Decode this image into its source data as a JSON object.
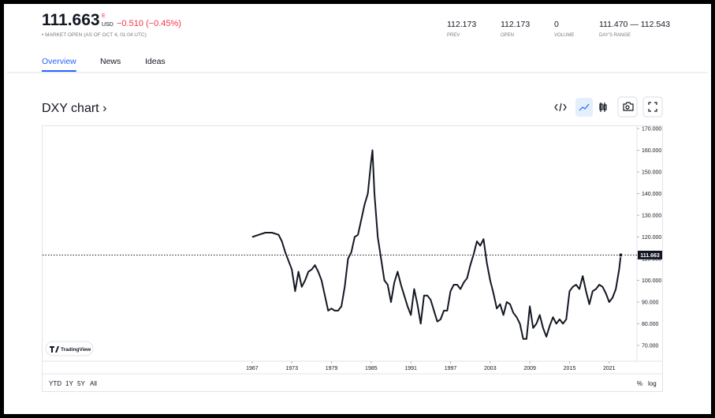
{
  "header": {
    "price": "111.663",
    "exchange_flag": "E",
    "currency": "USD",
    "change": "−0.510 (−0.45%)",
    "market_status": "• MARKET OPEN (AS OF OCT 4, 01:04 UTC)",
    "stats": [
      {
        "value": "112.173",
        "label": "PREV"
      },
      {
        "value": "112.173",
        "label": "OPEN"
      },
      {
        "value": "0",
        "label": "VOLUME"
      },
      {
        "value": "111.470 — 112.543",
        "label": "DAY'S RANGE"
      }
    ]
  },
  "tabs": [
    "Overview",
    "News",
    "Ideas"
  ],
  "active_tab": 0,
  "section_title": "DXY chart ›",
  "chart_data": {
    "type": "line",
    "color": "#131722",
    "x": [
      1967,
      1968,
      1969,
      1970,
      1971,
      1971.5,
      1972,
      1973,
      1973.5,
      1974,
      1974.5,
      1975,
      1975.5,
      1976,
      1976.5,
      1977,
      1977.5,
      1978,
      1978.5,
      1979,
      1979.5,
      1980,
      1980.5,
      1981,
      1981.5,
      1982,
      1982.5,
      1983,
      1983.5,
      1984,
      1984.5,
      1985,
      1985.2,
      1985.5,
      1986,
      1986.5,
      1987,
      1987.5,
      1988,
      1988.5,
      1989,
      1989.5,
      1990,
      1990.5,
      1991,
      1991.5,
      1992,
      1992.5,
      1993,
      1993.5,
      1994,
      1994.5,
      1995,
      1995.5,
      1996,
      1996.5,
      1997,
      1997.5,
      1998,
      1998.5,
      1999,
      1999.5,
      2000,
      2000.5,
      2001,
      2001.5,
      2002,
      2002.5,
      2003,
      2003.5,
      2004,
      2004.5,
      2005,
      2005.5,
      2006,
      2006.5,
      2007,
      2007.5,
      2008,
      2008.5,
      2009,
      2009.5,
      2010,
      2010.5,
      2011,
      2011.5,
      2012,
      2012.5,
      2013,
      2013.5,
      2014,
      2014.5,
      2015,
      2015.5,
      2016,
      2016.5,
      2017,
      2017.5,
      2018,
      2018.5,
      2019,
      2019.5,
      2020,
      2020.5,
      2021,
      2021.5,
      2022,
      2022.5,
      2022.75
    ],
    "values": [
      120,
      121,
      122,
      122,
      121,
      118,
      113,
      105,
      95,
      104,
      97,
      100,
      104,
      105,
      107,
      104,
      100,
      93,
      86,
      87,
      86,
      86,
      88,
      97,
      110,
      113,
      120,
      121,
      128,
      135,
      140,
      155,
      160,
      140,
      120,
      110,
      100,
      98,
      90,
      99,
      104,
      98,
      93,
      88,
      84,
      96,
      89,
      80,
      93,
      93,
      91,
      86,
      81,
      82,
      86,
      86,
      95,
      98,
      98,
      96,
      99,
      101,
      107,
      112,
      118,
      116,
      119,
      108,
      100,
      94,
      87,
      89,
      84,
      90,
      89,
      85,
      83,
      80,
      73,
      73,
      88,
      78,
      80,
      84,
      78,
      74,
      79,
      83,
      80,
      82,
      80,
      82,
      95,
      97,
      98,
      96,
      102,
      95,
      89,
      95,
      96,
      98,
      97,
      94,
      90,
      92,
      96,
      105,
      111.663
    ],
    "last_value": {
      "value": 111.663,
      "label": "111.663"
    },
    "xlim": [
      1935.3,
      2025.2
    ],
    "xticks": [
      1967,
      1973,
      1979,
      1985,
      1991,
      1997,
      2003,
      2009,
      2015,
      2021
    ],
    "ylim": [
      62.7,
      171.1
    ],
    "yticks": [
      {
        "value": 70,
        "label": "70.000"
      },
      {
        "value": 80,
        "label": "80.000"
      },
      {
        "value": 90,
        "label": "90.000"
      },
      {
        "value": 100,
        "label": "100.000"
      },
      {
        "value": 110,
        "label": "110.000"
      },
      {
        "value": 120,
        "label": "120.000"
      },
      {
        "value": 130,
        "label": "130.000"
      },
      {
        "value": 140,
        "label": "140.000"
      },
      {
        "value": 150,
        "label": "150.000"
      },
      {
        "value": 160,
        "label": "160.000"
      },
      {
        "value": 170,
        "label": "170.000"
      }
    ],
    "watermark": "TradingView",
    "ranges": [
      "YTD",
      "1Y",
      "5Y",
      "All"
    ],
    "scale_options": [
      "%",
      "log"
    ]
  }
}
